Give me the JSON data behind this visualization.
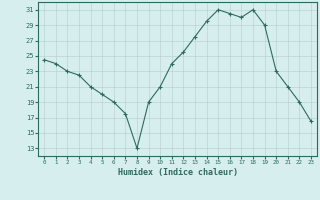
{
  "x": [
    0,
    1,
    2,
    3,
    4,
    5,
    6,
    7,
    8,
    9,
    10,
    11,
    12,
    13,
    14,
    15,
    16,
    17,
    18,
    19,
    20,
    21,
    22,
    23
  ],
  "y": [
    24.5,
    24.0,
    23.0,
    22.5,
    21.0,
    20.0,
    19.0,
    17.5,
    13.0,
    19.0,
    21.0,
    24.0,
    25.5,
    27.5,
    29.5,
    31.0,
    30.5,
    30.0,
    31.0,
    29.0,
    23.0,
    21.0,
    19.0,
    16.5
  ],
  "xlabel": "Humidex (Indice chaleur)",
  "ylim": [
    12,
    32
  ],
  "xlim": [
    -0.5,
    23.5
  ],
  "yticks": [
    13,
    15,
    17,
    19,
    21,
    23,
    25,
    27,
    29,
    31
  ],
  "xticks": [
    0,
    1,
    2,
    3,
    4,
    5,
    6,
    7,
    8,
    9,
    10,
    11,
    12,
    13,
    14,
    15,
    16,
    17,
    18,
    19,
    20,
    21,
    22,
    23
  ],
  "xtick_labels": [
    "0",
    "1",
    "2",
    "3",
    "4",
    "5",
    "6",
    "7",
    "8",
    "9",
    "10",
    "11",
    "12",
    "13",
    "14",
    "15",
    "16",
    "17",
    "18",
    "19",
    "20",
    "21",
    "22",
    "23"
  ],
  "line_color": "#2d6b5e",
  "marker_color": "#2d6b5e",
  "bg_color": "#d6eeee",
  "grid_color": "#b5cccc",
  "axis_color": "#2d6b5e"
}
